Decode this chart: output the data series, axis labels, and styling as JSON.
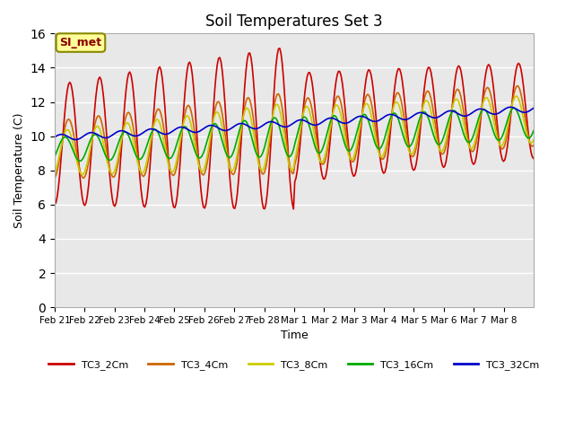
{
  "title": "Soil Temperatures Set 3",
  "xlabel": "Time",
  "ylabel": "Soil Temperature (C)",
  "ylim": [
    0,
    16
  ],
  "yticks": [
    0,
    2,
    4,
    6,
    8,
    10,
    12,
    14,
    16
  ],
  "x_labels": [
    "Feb 21",
    "Feb 22",
    "Feb 23",
    "Feb 24",
    "Feb 25",
    "Feb 26",
    "Feb 27",
    "Feb 28",
    "Mar 1",
    "Mar 2",
    "Mar 3",
    "Mar 4",
    "Mar 5",
    "Mar 6",
    "Mar 7",
    "Mar 8"
  ],
  "annotation_text": "SI_met",
  "annotation_color": "#8B0000",
  "annotation_bg": "#FFFF99",
  "bg_color": "#E8E8E8",
  "series_colors": [
    "#CC0000",
    "#CC6600",
    "#CCCC00",
    "#00AA00",
    "#0000CC"
  ],
  "series_labels": [
    "TC3_2Cm",
    "TC3_4Cm",
    "TC3_8Cm",
    "TC3_16Cm",
    "TC3_32Cm"
  ]
}
